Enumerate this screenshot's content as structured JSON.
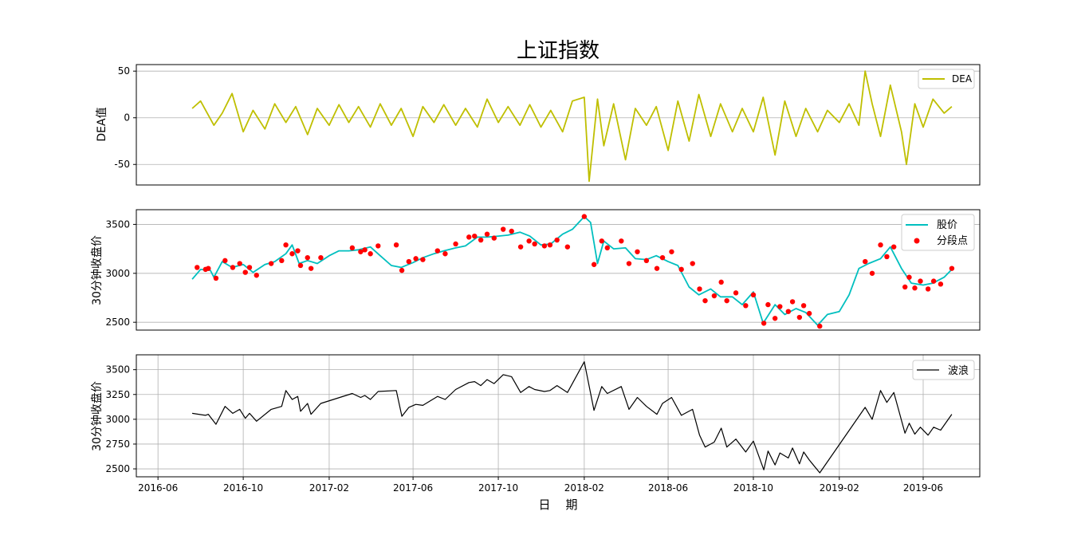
{
  "figure": {
    "title": "上证指数",
    "xlabel": "日    期",
    "x_ticks": [
      "2016-06",
      "2016-10",
      "2017-02",
      "2017-06",
      "2017-10",
      "2018-02",
      "2018-06",
      "2018-10",
      "2019-02",
      "2019-06"
    ]
  },
  "chart_data": [
    {
      "type": "line",
      "ylabel": "DEA值",
      "ylim": [
        -72,
        57
      ],
      "y_ticks": [
        50,
        0,
        -50
      ],
      "grid": "horizontal",
      "legend_position": "top-right",
      "series": [
        {
          "name": "DEA",
          "color": "#bfbf00",
          "x": [
            "2016-07-20",
            "2016-08-01",
            "2016-08-20",
            "2016-09-01",
            "2016-09-15",
            "2016-10-01",
            "2016-10-15",
            "2016-11-01",
            "2016-11-15",
            "2016-12-01",
            "2016-12-15",
            "2017-01-01",
            "2017-01-15",
            "2017-02-01",
            "2017-02-15",
            "2017-03-01",
            "2017-03-15",
            "2017-04-01",
            "2017-04-15",
            "2017-05-01",
            "2017-05-15",
            "2017-06-01",
            "2017-06-15",
            "2017-07-01",
            "2017-07-15",
            "2017-08-01",
            "2017-08-15",
            "2017-09-01",
            "2017-09-15",
            "2017-10-01",
            "2017-10-15",
            "2017-11-01",
            "2017-11-15",
            "2017-12-01",
            "2017-12-15",
            "2018-01-01",
            "2018-01-15",
            "2018-02-01",
            "2018-02-08",
            "2018-02-20",
            "2018-03-01",
            "2018-03-15",
            "2018-04-01",
            "2018-04-15",
            "2018-05-01",
            "2018-05-15",
            "2018-06-01",
            "2018-06-15",
            "2018-07-01",
            "2018-07-15",
            "2018-08-01",
            "2018-08-15",
            "2018-09-01",
            "2018-09-15",
            "2018-10-01",
            "2018-10-15",
            "2018-11-01",
            "2018-11-15",
            "2018-12-01",
            "2018-12-15",
            "2019-01-01",
            "2019-01-15",
            "2019-02-01",
            "2019-02-15",
            "2019-03-01",
            "2019-03-10",
            "2019-03-20",
            "2019-04-01",
            "2019-04-15",
            "2019-05-01",
            "2019-05-08",
            "2019-05-20",
            "2019-06-01",
            "2019-06-15",
            "2019-07-01",
            "2019-07-12"
          ],
          "values": [
            10,
            18,
            -8,
            5,
            26,
            -15,
            8,
            -12,
            15,
            -5,
            12,
            -18,
            10,
            -8,
            14,
            -5,
            12,
            -10,
            15,
            -8,
            10,
            -20,
            12,
            -5,
            14,
            -8,
            10,
            -10,
            20,
            -5,
            12,
            -8,
            14,
            -10,
            8,
            -15,
            18,
            22,
            -68,
            20,
            -30,
            15,
            -45,
            10,
            -8,
            12,
            -35,
            18,
            -25,
            25,
            -20,
            15,
            -15,
            10,
            -15,
            22,
            -40,
            18,
            -20,
            10,
            -15,
            8,
            -5,
            15,
            -8,
            50,
            15,
            -20,
            35,
            -15,
            -50,
            15,
            -10,
            20,
            5,
            12
          ]
        }
      ]
    },
    {
      "type": "line",
      "ylabel": "30分钟收盘价",
      "ylim": [
        2420,
        3650
      ],
      "y_ticks": [
        3500,
        3000,
        2500
      ],
      "grid": "horizontal",
      "legend_position": "top-right",
      "series": [
        {
          "name": "股价",
          "color": "#00bfbf",
          "x": [
            "2016-07-20",
            "2016-08-01",
            "2016-08-15",
            "2016-08-20",
            "2016-09-01",
            "2016-09-15",
            "2016-10-01",
            "2016-10-15",
            "2016-11-01",
            "2016-11-15",
            "2016-12-01",
            "2016-12-10",
            "2016-12-20",
            "2017-01-01",
            "2017-01-15",
            "2017-02-01",
            "2017-02-15",
            "2017-03-01",
            "2017-03-15",
            "2017-04-01",
            "2017-04-15",
            "2017-05-01",
            "2017-05-15",
            "2017-06-01",
            "2017-06-15",
            "2017-07-01",
            "2017-07-15",
            "2017-08-01",
            "2017-08-15",
            "2017-09-01",
            "2017-09-15",
            "2017-10-01",
            "2017-10-15",
            "2017-11-01",
            "2017-11-15",
            "2017-12-01",
            "2017-12-15",
            "2018-01-01",
            "2018-01-15",
            "2018-02-01",
            "2018-02-10",
            "2018-02-20",
            "2018-03-01",
            "2018-03-15",
            "2018-04-01",
            "2018-04-15",
            "2018-05-01",
            "2018-05-15",
            "2018-06-01",
            "2018-06-15",
            "2018-07-01",
            "2018-07-15",
            "2018-08-01",
            "2018-08-15",
            "2018-09-01",
            "2018-09-15",
            "2018-10-01",
            "2018-10-15",
            "2018-11-01",
            "2018-11-15",
            "2018-12-01",
            "2018-12-15",
            "2019-01-01",
            "2019-01-15",
            "2019-02-01",
            "2019-02-15",
            "2019-03-01",
            "2019-03-15",
            "2019-04-01",
            "2019-04-15",
            "2019-05-01",
            "2019-05-15",
            "2019-06-01",
            "2019-06-15",
            "2019-07-01",
            "2019-07-12"
          ],
          "values": [
            2940,
            3040,
            3030,
            2960,
            3120,
            3060,
            3090,
            3010,
            3090,
            3120,
            3200,
            3290,
            3100,
            3130,
            3100,
            3180,
            3230,
            3230,
            3240,
            3270,
            3180,
            3080,
            3060,
            3110,
            3160,
            3200,
            3230,
            3260,
            3280,
            3370,
            3370,
            3380,
            3390,
            3420,
            3380,
            3290,
            3300,
            3400,
            3450,
            3580,
            3520,
            3100,
            3330,
            3250,
            3260,
            3150,
            3140,
            3180,
            3120,
            3080,
            2860,
            2780,
            2840,
            2760,
            2760,
            2680,
            2810,
            2490,
            2680,
            2580,
            2640,
            2600,
            2470,
            2580,
            2610,
            2780,
            3050,
            3100,
            3150,
            3270,
            3050,
            2900,
            2880,
            2900,
            2960,
            3040
          ]
        },
        {
          "name": "分段点",
          "type": "scatter",
          "color": "#ff0000",
          "x": [
            "2016-07-27",
            "2016-08-08",
            "2016-08-12",
            "2016-08-23",
            "2016-09-05",
            "2016-09-16",
            "2016-09-26",
            "2016-10-04",
            "2016-10-10",
            "2016-10-20",
            "2016-11-10",
            "2016-11-25",
            "2016-12-01",
            "2016-12-10",
            "2016-12-18",
            "2016-12-22",
            "2017-01-01",
            "2017-01-06",
            "2017-01-20",
            "2017-03-06",
            "2017-03-18",
            "2017-03-24",
            "2017-04-01",
            "2017-04-12",
            "2017-05-08",
            "2017-05-16",
            "2017-05-26",
            "2017-06-05",
            "2017-06-15",
            "2017-07-06",
            "2017-07-17",
            "2017-08-01",
            "2017-08-20",
            "2017-08-28",
            "2017-09-06",
            "2017-09-15",
            "2017-09-25",
            "2017-10-08",
            "2017-10-20",
            "2017-11-02",
            "2017-11-14",
            "2017-11-22",
            "2017-12-06",
            "2017-12-14",
            "2017-12-24",
            "2018-01-08",
            "2018-02-01",
            "2018-02-15",
            "2018-02-26",
            "2018-03-06",
            "2018-03-26",
            "2018-04-06",
            "2018-04-18",
            "2018-05-01",
            "2018-05-16",
            "2018-05-24",
            "2018-06-06",
            "2018-06-20",
            "2018-07-06",
            "2018-07-16",
            "2018-07-24",
            "2018-08-06",
            "2018-08-16",
            "2018-08-24",
            "2018-09-06",
            "2018-09-20",
            "2018-10-01",
            "2018-10-16",
            "2018-10-22",
            "2018-11-01",
            "2018-11-08",
            "2018-11-20",
            "2018-11-26",
            "2018-12-06",
            "2018-12-12",
            "2018-12-20",
            "2019-01-04",
            "2019-03-10",
            "2019-03-20",
            "2019-04-01",
            "2019-04-10",
            "2019-04-20",
            "2019-05-06",
            "2019-05-12",
            "2019-05-20",
            "2019-05-28",
            "2019-06-08",
            "2019-06-16",
            "2019-06-26",
            "2019-07-12"
          ],
          "values": [
            3060,
            3040,
            3050,
            2950,
            3130,
            3060,
            3100,
            3010,
            3060,
            2980,
            3100,
            3130,
            3290,
            3200,
            3230,
            3080,
            3160,
            3050,
            3160,
            3260,
            3220,
            3240,
            3200,
            3280,
            3290,
            3030,
            3120,
            3150,
            3140,
            3230,
            3200,
            3300,
            3370,
            3380,
            3340,
            3400,
            3360,
            3450,
            3430,
            3270,
            3330,
            3300,
            3280,
            3290,
            3340,
            3270,
            3580,
            3090,
            3330,
            3260,
            3330,
            3100,
            3220,
            3130,
            3050,
            3160,
            3220,
            3040,
            3100,
            2840,
            2720,
            2770,
            2910,
            2720,
            2800,
            2670,
            2780,
            2490,
            2680,
            2540,
            2660,
            2610,
            2710,
            2550,
            2670,
            2590,
            2460,
            3120,
            3000,
            3290,
            3170,
            3270,
            2860,
            2960,
            2850,
            2920,
            2840,
            2920,
            2890,
            3050
          ]
        }
      ]
    },
    {
      "type": "line",
      "ylabel": "30分钟收盘价",
      "ylim": [
        2420,
        3650
      ],
      "y_ticks": [
        3500,
        3250,
        3000,
        2750,
        2500
      ],
      "grid": "both",
      "legend_position": "top-right",
      "series": [
        {
          "name": "波浪",
          "color": "#000000",
          "x": [
            "2016-07-20",
            "2016-08-08",
            "2016-08-12",
            "2016-08-23",
            "2016-09-05",
            "2016-09-16",
            "2016-09-26",
            "2016-10-04",
            "2016-10-10",
            "2016-10-20",
            "2016-11-10",
            "2016-11-25",
            "2016-12-01",
            "2016-12-10",
            "2016-12-18",
            "2016-12-22",
            "2017-01-01",
            "2017-01-06",
            "2017-01-20",
            "2017-03-06",
            "2017-03-18",
            "2017-03-24",
            "2017-04-01",
            "2017-04-12",
            "2017-05-08",
            "2017-05-16",
            "2017-05-26",
            "2017-06-05",
            "2017-06-15",
            "2017-07-06",
            "2017-07-17",
            "2017-08-01",
            "2017-08-20",
            "2017-08-28",
            "2017-09-06",
            "2017-09-15",
            "2017-09-25",
            "2017-10-08",
            "2017-10-20",
            "2017-11-02",
            "2017-11-14",
            "2017-11-22",
            "2017-12-06",
            "2017-12-14",
            "2017-12-24",
            "2018-01-08",
            "2018-02-01",
            "2018-02-15",
            "2018-02-26",
            "2018-03-06",
            "2018-03-26",
            "2018-04-06",
            "2018-04-18",
            "2018-05-01",
            "2018-05-16",
            "2018-05-24",
            "2018-06-06",
            "2018-06-20",
            "2018-07-06",
            "2018-07-16",
            "2018-07-24",
            "2018-08-06",
            "2018-08-16",
            "2018-08-24",
            "2018-09-06",
            "2018-09-20",
            "2018-10-01",
            "2018-10-16",
            "2018-10-22",
            "2018-11-01",
            "2018-11-08",
            "2018-11-20",
            "2018-11-26",
            "2018-12-06",
            "2018-12-12",
            "2018-12-20",
            "2019-01-04",
            "2019-03-10",
            "2019-03-20",
            "2019-04-01",
            "2019-04-10",
            "2019-04-20",
            "2019-05-06",
            "2019-05-12",
            "2019-05-20",
            "2019-05-28",
            "2019-06-08",
            "2019-06-16",
            "2019-06-26",
            "2019-07-12"
          ],
          "values": [
            3060,
            3040,
            3050,
            2950,
            3130,
            3060,
            3100,
            3010,
            3060,
            2980,
            3100,
            3130,
            3290,
            3200,
            3230,
            3080,
            3160,
            3050,
            3160,
            3260,
            3220,
            3240,
            3200,
            3280,
            3290,
            3030,
            3120,
            3150,
            3140,
            3230,
            3200,
            3300,
            3370,
            3380,
            3340,
            3400,
            3360,
            3450,
            3430,
            3270,
            3330,
            3300,
            3280,
            3290,
            3340,
            3270,
            3580,
            3090,
            3330,
            3260,
            3330,
            3100,
            3220,
            3130,
            3050,
            3160,
            3220,
            3040,
            3100,
            2840,
            2720,
            2770,
            2910,
            2720,
            2800,
            2670,
            2780,
            2490,
            2680,
            2540,
            2660,
            2610,
            2710,
            2550,
            2670,
            2590,
            2460,
            3120,
            3000,
            3290,
            3170,
            3270,
            2860,
            2960,
            2850,
            2920,
            2840,
            2920,
            2890,
            3050
          ]
        }
      ]
    }
  ]
}
